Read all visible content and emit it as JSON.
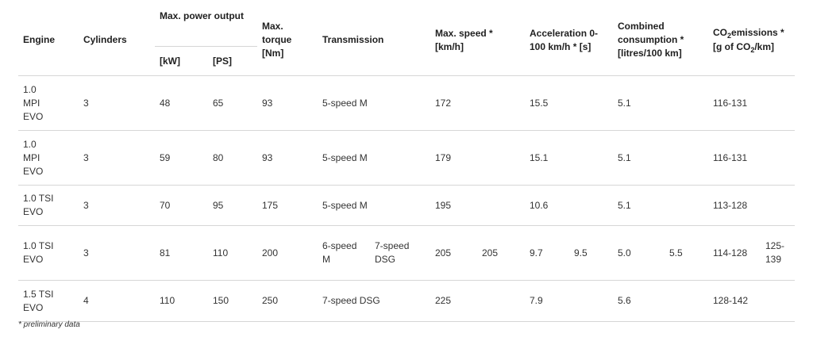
{
  "headers": {
    "engine": "Engine",
    "cylinders": "Cylinders",
    "power": "Max. power output",
    "power_kw": "[kW]",
    "power_ps": "[PS]",
    "torque": "Max. torque [Nm]",
    "transmission": "Transmission",
    "speed": "Max. speed * [km/h]",
    "accel": "Acceleration 0-100 km/h * [s]",
    "consumption": "Combined consumption * [litres/100 km]",
    "co2_prefix": "CO",
    "co2_sub": "2",
    "co2_middle": "emissions * [g of CO",
    "co2_sub2": "2",
    "co2_suffix": "/km]"
  },
  "rows": [
    {
      "engine": "1.0 MPI EVO",
      "cylinders": "3",
      "kw": "48",
      "ps": "65",
      "torque": "93",
      "transmission": "5-speed M",
      "speed": "172",
      "accel": "15.5",
      "consumption": "5.1",
      "co2": "116-131"
    },
    {
      "engine": "1.0 MPI EVO",
      "cylinders": "3",
      "kw": "59",
      "ps": "80",
      "torque": "93",
      "transmission": "5-speed M",
      "speed": "179",
      "accel": "15.1",
      "consumption": "5.1",
      "co2": "116-131"
    },
    {
      "engine": "1.0 TSI EVO",
      "cylinders": "3",
      "kw": "70",
      "ps": "95",
      "torque": "175",
      "transmission": "5-speed M",
      "speed": "195",
      "accel": "10.6",
      "consumption": "5.1",
      "co2": "113-128"
    },
    {
      "engine": "1.0 TSI EVO",
      "cylinders": "3",
      "kw": "81",
      "ps": "110",
      "torque": "200",
      "transmission_a": "6-speed M",
      "transmission_b": "7-speed DSG",
      "speed_a": "205",
      "speed_b": "205",
      "accel_a": "9.7",
      "accel_b": "9.5",
      "consumption_a": "5.0",
      "consumption_b": "5.5",
      "co2_a": "114-128",
      "co2_b": "125-139"
    },
    {
      "engine": "1.5 TSI EVO",
      "cylinders": "4",
      "kw": "110",
      "ps": "150",
      "torque": "250",
      "transmission": "7-speed DSG",
      "speed": "225",
      "accel": "7.9",
      "consumption": "5.6",
      "co2": "128-142"
    }
  ],
  "footnote": "* preliminary data"
}
